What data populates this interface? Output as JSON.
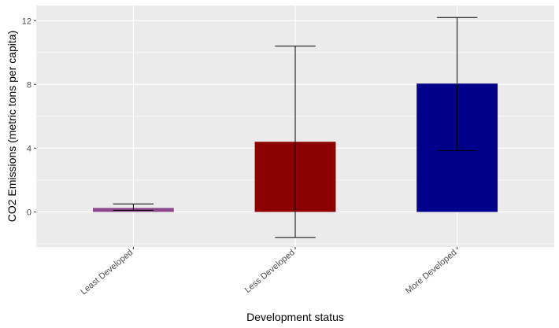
{
  "chart_data": {
    "type": "bar",
    "title": "",
    "xlabel": "Development status",
    "ylabel": "CO2 Emissions  (metric tons per capita)",
    "categories": [
      "Least Developed",
      "Less Developed",
      "More Developed"
    ],
    "values": [
      0.25,
      4.4,
      8.05
    ],
    "error_bars": [
      {
        "low": 0.1,
        "high": 0.5
      },
      {
        "low": -1.6,
        "high": 10.4
      },
      {
        "low": 3.85,
        "high": 12.2
      }
    ],
    "colors": [
      "#8B4A8B",
      "#8B0000",
      "#00008B"
    ],
    "yticks": [
      0,
      4,
      8,
      12
    ],
    "ylim": [
      -2.2,
      12.95
    ],
    "grid": true,
    "legend": "none",
    "panel_background": "#EBEBEB",
    "grid_color": "#FFFFFF"
  }
}
